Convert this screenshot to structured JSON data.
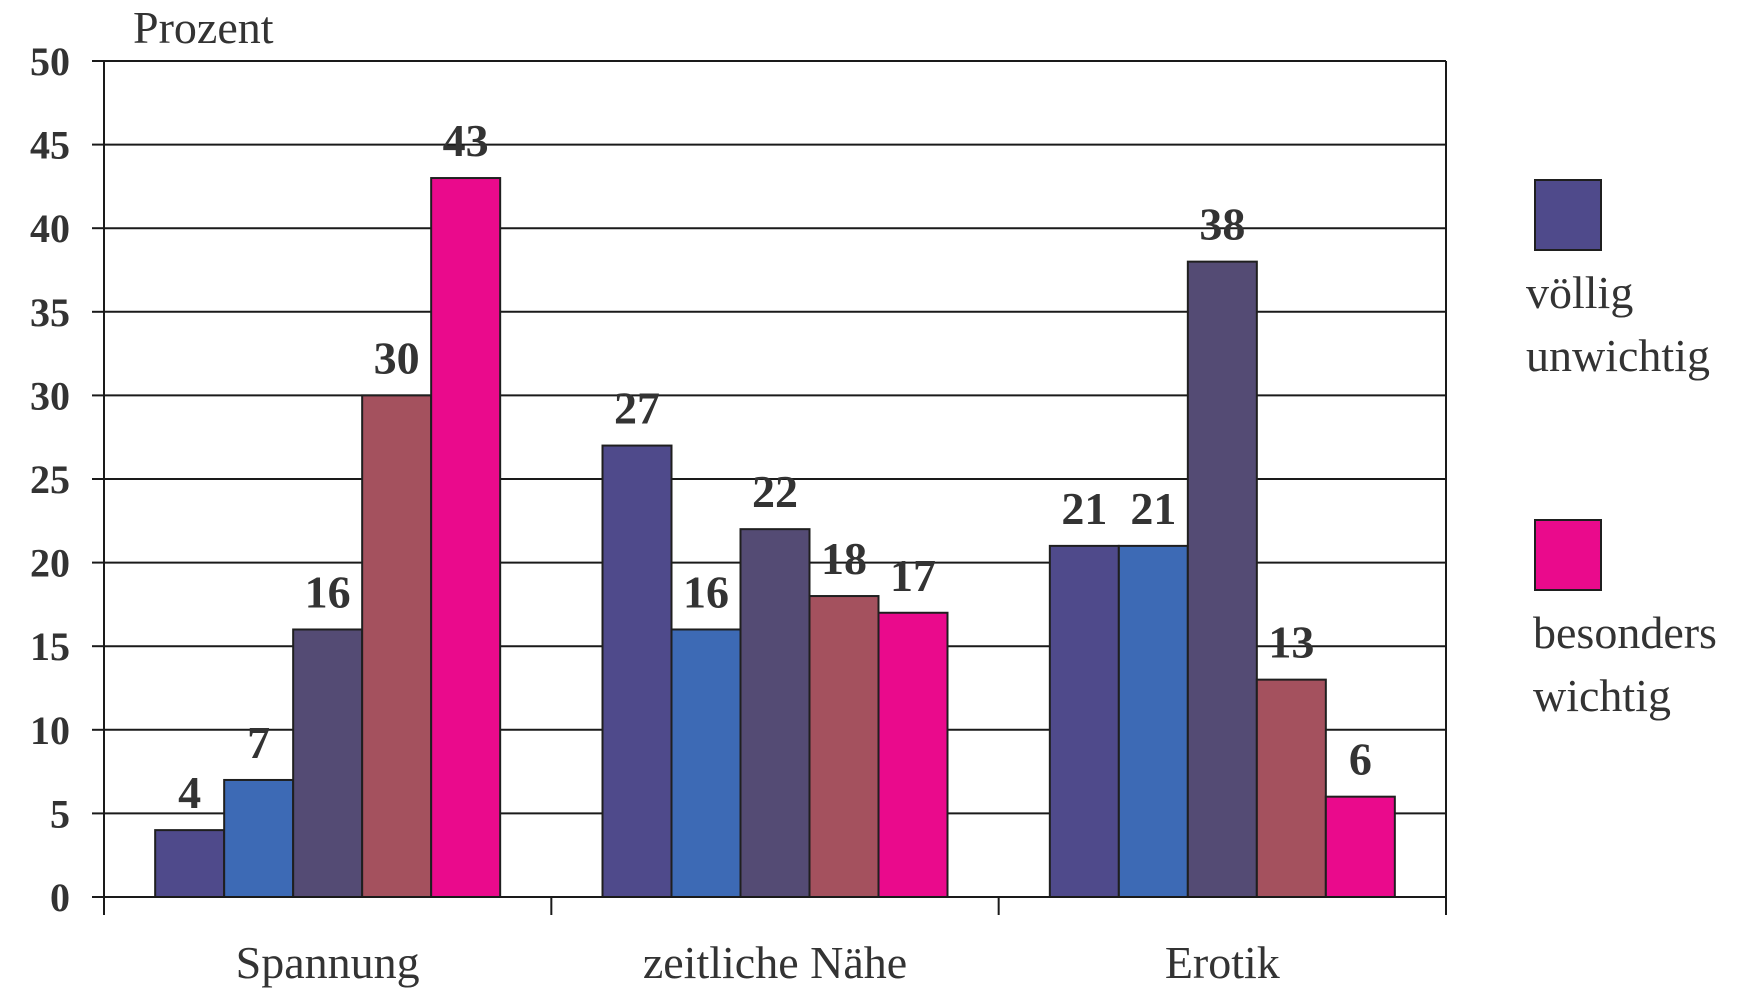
{
  "chart_data": {
    "type": "bar",
    "title": "",
    "xlabel": "",
    "ylabel": "Prozent",
    "ylim": [
      0,
      50
    ],
    "yticks": [
      0,
      5,
      10,
      15,
      20,
      25,
      30,
      35,
      40,
      45,
      50
    ],
    "grid": true,
    "legend_position": "right",
    "categories": [
      "Spannung",
      "zeitliche Nähe",
      "Erotik"
    ],
    "series": [
      {
        "values": [
          4,
          27,
          21
        ],
        "color": "#4f4a8b"
      },
      {
        "values": [
          7,
          16,
          21
        ],
        "color": "#3d6ab5"
      },
      {
        "values": [
          16,
          22,
          38
        ],
        "color": "#544b74"
      },
      {
        "values": [
          30,
          18,
          13
        ],
        "color": "#a4515e"
      },
      {
        "values": [
          43,
          17,
          6
        ],
        "color": "#ea0a8c"
      }
    ],
    "legend": [
      {
        "label_lines": [
          "völlig",
          "unwichtig"
        ],
        "color": "#4f4a8b"
      },
      {
        "label_lines": [
          "besonders",
          "wichtig"
        ],
        "color": "#ea0a8c"
      }
    ]
  }
}
